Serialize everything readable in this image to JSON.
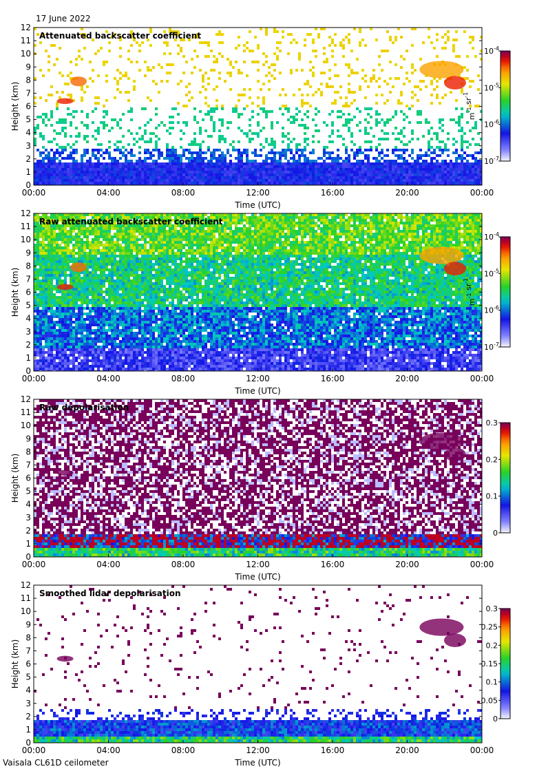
{
  "figure": {
    "date_label": "17 June 2022",
    "instrument_label": "Vaisala CL61D ceilometer"
  },
  "chart_data": [
    {
      "type": "heatmap",
      "title": "Attenuated backscatter coefficient",
      "xlabel": "Time (UTC)",
      "ylabel": "Height (km)",
      "x_ticks": [
        "00:00",
        "04:00",
        "08:00",
        "12:00",
        "16:00",
        "20:00",
        "00:00"
      ],
      "y_ticks": [
        "0",
        "1",
        "2",
        "3",
        "4",
        "5",
        "6",
        "7",
        "8",
        "9",
        "10",
        "11",
        "12"
      ],
      "ylim": [
        0,
        12
      ],
      "colorbar": {
        "scale": "log",
        "ticks": [
          "10^-7",
          "10^-6",
          "10^-5",
          "10^-4"
        ],
        "unit": "m^-1 sr^-1",
        "range": [
          1e-07,
          0.0001
        ]
      }
    },
    {
      "type": "heatmap",
      "title": "Raw attenuated backscatter coefficient",
      "xlabel": "Time (UTC)",
      "ylabel": "Height (km)",
      "x_ticks": [
        "00:00",
        "04:00",
        "08:00",
        "12:00",
        "16:00",
        "20:00",
        "00:00"
      ],
      "y_ticks": [
        "0",
        "1",
        "2",
        "3",
        "4",
        "5",
        "6",
        "7",
        "8",
        "9",
        "10",
        "11",
        "12"
      ],
      "ylim": [
        0,
        12
      ],
      "colorbar": {
        "scale": "log",
        "ticks": [
          "10^-7",
          "10^-6",
          "10^-5",
          "10^-4"
        ],
        "unit": "m^-1 sr^-1",
        "range": [
          1e-07,
          0.0001
        ]
      }
    },
    {
      "type": "heatmap",
      "title": "Raw depolarisation",
      "xlabel": "Time (UTC)",
      "ylabel": "Height (km)",
      "x_ticks": [
        "00:00",
        "04:00",
        "08:00",
        "12:00",
        "16:00",
        "20:00",
        "00:00"
      ],
      "y_ticks": [
        "0",
        "1",
        "2",
        "3",
        "4",
        "5",
        "6",
        "7",
        "8",
        "9",
        "10",
        "11",
        "12"
      ],
      "ylim": [
        0,
        12
      ],
      "colorbar": {
        "scale": "linear",
        "ticks": [
          "0",
          "0.1",
          "0.2",
          "0.3"
        ],
        "unit": "",
        "range": [
          0,
          0.3
        ]
      }
    },
    {
      "type": "heatmap",
      "title": "Smoothed lidar depolarisation",
      "xlabel": "Time (UTC)",
      "ylabel": "Height (km)",
      "x_ticks": [
        "00:00",
        "04:00",
        "08:00",
        "12:00",
        "16:00",
        "20:00",
        "00:00"
      ],
      "y_ticks": [
        "0",
        "1",
        "2",
        "3",
        "4",
        "5",
        "6",
        "7",
        "8",
        "9",
        "10",
        "11",
        "12"
      ],
      "ylim": [
        0,
        12
      ],
      "colorbar": {
        "scale": "linear",
        "ticks": [
          "0",
          "0.05",
          "0.1",
          "0.15",
          "0.2",
          "0.25",
          "0.3"
        ],
        "unit": "",
        "range": [
          0,
          0.3
        ]
      }
    }
  ]
}
